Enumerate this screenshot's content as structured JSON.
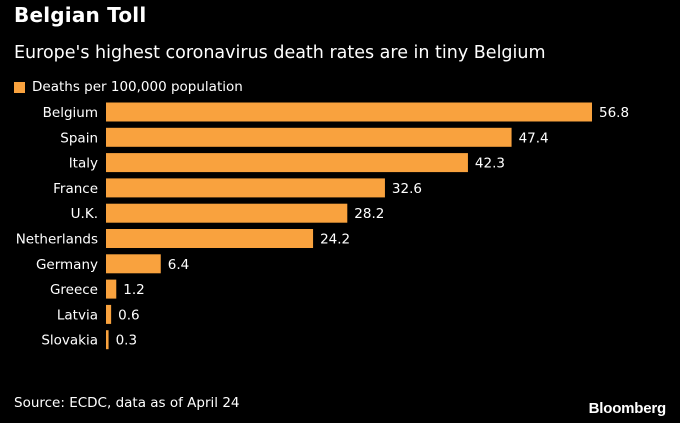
{
  "header": {
    "title": "Belgian Toll",
    "subtitle": "Europe's highest coronavirus death rates are in tiny Belgium"
  },
  "colors": {
    "bar": "#F9A23E",
    "background": "#000000",
    "text": "#FFFFFF"
  },
  "chart_data": {
    "type": "bar",
    "orientation": "horizontal",
    "title": "Belgian Toll",
    "subtitle": "Europe's highest coronavirus death rates are in tiny Belgium",
    "legend": "Deaths per 100,000 population",
    "categories": [
      "Belgium",
      "Spain",
      "Italy",
      "France",
      "U.K.",
      "Netherlands",
      "Germany",
      "Greece",
      "Latvia",
      "Slovakia"
    ],
    "series": [
      {
        "name": "Deaths per 100,000 population",
        "values": [
          56.8,
          47.4,
          42.3,
          32.6,
          28.2,
          24.2,
          6.4,
          1.2,
          0.6,
          0.3
        ]
      }
    ],
    "value_labels": [
      "56.8",
      "47.4",
      "42.3",
      "32.6",
      "28.2",
      "24.2",
      "6.4",
      "1.2",
      "0.6",
      "0.3"
    ],
    "xlim": [
      0,
      56.8
    ],
    "grid": false
  },
  "footer": {
    "source": "Source: ECDC, data as of April 24",
    "brand": "Bloomberg"
  }
}
